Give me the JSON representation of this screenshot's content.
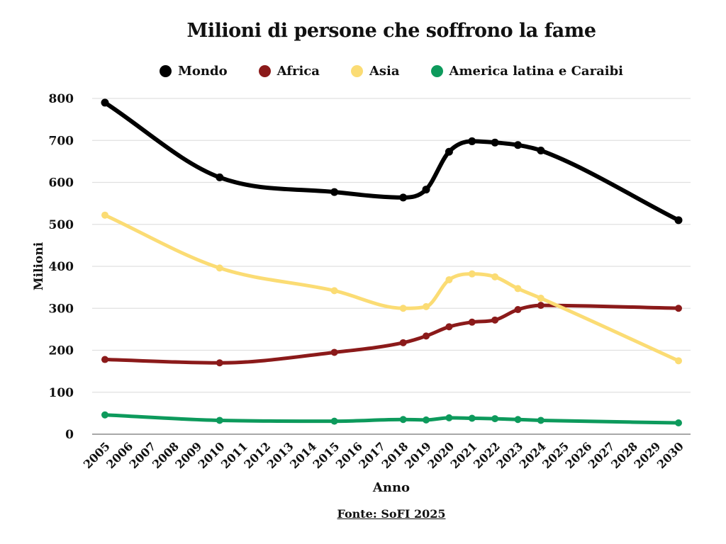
{
  "chart_data": {
    "type": "line",
    "title": "Milioni di persone che soffrono la fame",
    "xlabel": "Anno",
    "ylabel": "Milioni",
    "source": "Fonte: SoFI 2025",
    "ylim": [
      0,
      800
    ],
    "y_ticks": [
      0,
      100,
      200,
      300,
      400,
      500,
      600,
      700,
      800
    ],
    "x_ticks": [
      2005,
      2006,
      2007,
      2008,
      2009,
      2010,
      2011,
      2012,
      2013,
      2014,
      2015,
      2016,
      2017,
      2018,
      2019,
      2020,
      2021,
      2022,
      2023,
      2024,
      2025,
      2026,
      2027,
      2028,
      2029,
      2030
    ],
    "x": [
      2005,
      2010,
      2015,
      2018,
      2019,
      2020,
      2021,
      2022,
      2023,
      2024,
      2030
    ],
    "series": [
      {
        "name": "Mondo",
        "color": "#000000",
        "values": [
          790,
          612,
          577,
          564,
          583,
          673,
          698,
          695,
          689,
          676,
          510
        ]
      },
      {
        "name": "Africa",
        "color": "#8B1A1A",
        "values": [
          178,
          170,
          195,
          218,
          234,
          256,
          267,
          272,
          297,
          307,
          300
        ]
      },
      {
        "name": "Asia",
        "color": "#FBDC74",
        "values": [
          522,
          396,
          342,
          300,
          304,
          368,
          382,
          375,
          347,
          324,
          175
        ]
      },
      {
        "name": "America latina e Caraibi",
        "color": "#0D9A5C",
        "values": [
          46,
          33,
          31,
          35,
          34,
          39,
          38,
          37,
          35,
          33,
          27
        ]
      }
    ],
    "grid": true,
    "legend_position": "top"
  },
  "colors": {
    "background": "#ffffff",
    "grid": "#e0e0e0",
    "axis": "#8c8c8c",
    "text": "#111111"
  }
}
